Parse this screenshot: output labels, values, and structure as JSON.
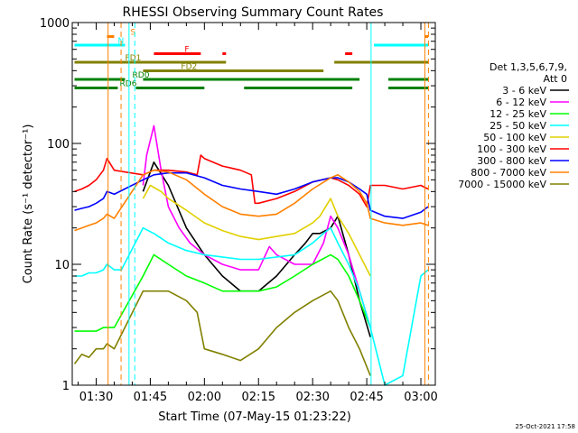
{
  "chart_data": {
    "type": "line",
    "title": "RHESSI Observing Summary Count Rates",
    "xlabel": "Start Time (07-May-15 01:23:22)",
    "ylabel": "Count Rate (s⁻¹ detector⁻¹)",
    "yscale": "log",
    "ylim": [
      1,
      1000
    ],
    "xlim_minutes": [
      83.37,
      184
    ],
    "x_ticks": [
      {
        "label": "01:30",
        "min": 90
      },
      {
        "label": "01:45",
        "min": 105
      },
      {
        "label": "02:00",
        "min": 120
      },
      {
        "label": "02:15",
        "min": 135
      },
      {
        "label": "02:30",
        "min": 150
      },
      {
        "label": "02:45",
        "min": 165
      },
      {
        "label": "03:00",
        "min": 180
      }
    ],
    "y_ticks": [
      {
        "label": "1",
        "v": 1
      },
      {
        "label": "10",
        "v": 10
      },
      {
        "label": "100",
        "v": 100
      },
      {
        "label": "1000",
        "v": 1000
      }
    ],
    "legend": {
      "placement": "right",
      "header": [
        "Det 1,3,5,6,7,9,",
        "Att 0"
      ]
    },
    "series": [
      {
        "name": "3 - 6 keV",
        "color": "#000000",
        "x": [
          103,
          106,
          110,
          115,
          120,
          125,
          130,
          135,
          140,
          145,
          148,
          150,
          152,
          155,
          157,
          160,
          163,
          166
        ],
        "y": [
          40,
          70,
          45,
          20,
          12,
          8,
          6,
          6,
          8,
          12,
          15,
          18,
          18,
          20,
          25,
          12,
          5,
          2.5
        ]
      },
      {
        "name": "6 - 12 keV",
        "color": "#ff00ff",
        "x": [
          103,
          104,
          106,
          108,
          110,
          113,
          116,
          120,
          125,
          130,
          135,
          138,
          140,
          145,
          150,
          153,
          155,
          157,
          160,
          163,
          166
        ],
        "y": [
          45,
          80,
          140,
          60,
          30,
          20,
          15,
          12,
          10,
          9,
          9,
          14,
          12,
          10,
          10,
          15,
          25,
          20,
          12,
          6,
          3
        ]
      },
      {
        "name": "12 - 25 keV",
        "color": "#00ff00",
        "x": [
          84,
          88,
          90,
          92,
          95,
          103,
          106,
          110,
          115,
          120,
          125,
          130,
          135,
          140,
          145,
          150,
          155,
          157,
          160,
          163,
          166
        ],
        "y": [
          2.8,
          2.8,
          2.8,
          3,
          3,
          8,
          12,
          10,
          8,
          7,
          6,
          6,
          6,
          6.5,
          8,
          10,
          12,
          11,
          8,
          5,
          3
        ]
      },
      {
        "name": "25 - 50 keV",
        "color": "#00ffff",
        "x": [
          84,
          86,
          88,
          90,
          92,
          93,
          95,
          97,
          103,
          106,
          110,
          115,
          120,
          125,
          130,
          135,
          140,
          145,
          150,
          153,
          155,
          157,
          160,
          163,
          166,
          170,
          175,
          180,
          182
        ],
        "y": [
          8,
          8,
          8.5,
          8.5,
          9,
          10,
          9,
          9,
          20,
          18,
          15,
          13,
          12,
          11.5,
          11,
          11,
          11.5,
          12,
          15,
          18,
          20,
          15,
          10,
          6,
          3,
          1,
          1.2,
          8,
          9
        ]
      },
      {
        "name": "50 - 100 keV",
        "color": "#e0d000",
        "x": [
          103,
          105,
          108,
          110,
          115,
          120,
          125,
          130,
          135,
          140,
          145,
          150,
          152,
          155,
          157,
          160,
          163,
          166
        ],
        "y": [
          35,
          45,
          40,
          35,
          28,
          22,
          19,
          17,
          16,
          17,
          18,
          22,
          25,
          35,
          25,
          18,
          12,
          8
        ]
      },
      {
        "name": "100 - 300 keV",
        "color": "#ff0000",
        "x": [
          84,
          86,
          88,
          90,
          92,
          93,
          95,
          103,
          106,
          110,
          115,
          118,
          119,
          120,
          125,
          130,
          133,
          134,
          135,
          140,
          145,
          150,
          155,
          157,
          160,
          163,
          165,
          166,
          170,
          175,
          180,
          182
        ],
        "y": [
          40,
          42,
          45,
          50,
          60,
          75,
          60,
          55,
          60,
          60,
          58,
          55,
          80,
          75,
          65,
          60,
          55,
          32,
          32,
          35,
          40,
          48,
          52,
          50,
          45,
          38,
          30,
          45,
          45,
          42,
          45,
          42
        ]
      },
      {
        "name": "300 - 800 keV",
        "color": "#0000ff",
        "x": [
          84,
          86,
          88,
          90,
          92,
          93,
          95,
          103,
          106,
          110,
          115,
          120,
          125,
          130,
          135,
          140,
          145,
          150,
          155,
          157,
          160,
          163,
          165,
          166,
          170,
          175,
          180,
          182
        ],
        "y": [
          28,
          29,
          30,
          32,
          35,
          40,
          38,
          50,
          55,
          57,
          57,
          52,
          45,
          42,
          40,
          38,
          42,
          48,
          52,
          52,
          48,
          42,
          38,
          28,
          25,
          24,
          27,
          30
        ]
      },
      {
        "name": "800 - 7000 keV",
        "color": "#ff8000",
        "x": [
          84,
          86,
          88,
          90,
          92,
          93,
          95,
          103,
          106,
          110,
          115,
          120,
          125,
          130,
          135,
          140,
          145,
          150,
          155,
          157,
          160,
          163,
          165,
          166,
          170,
          175,
          180,
          182
        ],
        "y": [
          19,
          20,
          21,
          22,
          24,
          26,
          24,
          55,
          60,
          58,
          50,
          38,
          30,
          26,
          25,
          26,
          32,
          42,
          52,
          55,
          48,
          40,
          32,
          24,
          22,
          21,
          22,
          21
        ]
      },
      {
        "name": "7000 - 15000 keV",
        "color": "#808000",
        "x": [
          84,
          86,
          88,
          90,
          92,
          93,
          95,
          103,
          106,
          110,
          115,
          118,
          120,
          125,
          130,
          135,
          140,
          145,
          150,
          155,
          157,
          160,
          163,
          166
        ],
        "y": [
          1.5,
          1.8,
          1.7,
          2,
          2,
          2.2,
          2,
          6,
          6,
          6,
          5,
          4,
          2,
          1.8,
          1.6,
          2,
          3,
          4,
          5,
          6,
          5,
          3,
          2,
          1.2
        ]
      }
    ],
    "flag_bars": [
      {
        "label": "S",
        "color": "#ff8000",
        "row": 1,
        "segments": [
          [
            93,
            95
          ],
          [
            181,
            182
          ]
        ]
      },
      {
        "label": "N",
        "color": "#00ffff",
        "row": 2,
        "segments": [
          [
            84,
            98
          ],
          [
            167,
            182
          ]
        ]
      },
      {
        "label": "F",
        "color": "#ff0000",
        "row": 3,
        "segments": [
          [
            106,
            119
          ],
          [
            125,
            126
          ],
          [
            159,
            161
          ]
        ]
      },
      {
        "label": "FD1",
        "color": "#808000",
        "row": 4,
        "segments": [
          [
            84,
            126
          ],
          [
            156,
            182
          ]
        ]
      },
      {
        "label": "FD2",
        "color": "#808000",
        "row": 5,
        "segments": [
          [
            103,
            153
          ]
        ]
      },
      {
        "label": "RD0",
        "color": "#008000",
        "row": 6,
        "segments": [
          [
            84,
            98
          ],
          [
            103,
            163
          ],
          [
            171,
            182
          ]
        ]
      },
      {
        "label": "RD6",
        "color": "#008000",
        "row": 7,
        "segments": [
          [
            84,
            96
          ],
          [
            101,
            120
          ],
          [
            131,
            161
          ],
          [
            171,
            182
          ]
        ]
      }
    ],
    "vertical_lines": [
      {
        "min": 93.3,
        "color": "#ff8000",
        "style": "solid"
      },
      {
        "min": 96.9,
        "color": "#ff8000",
        "style": "dashed"
      },
      {
        "min": 99.1,
        "color": "#00ffff",
        "style": "solid"
      },
      {
        "min": 100.7,
        "color": "#00ffff",
        "style": "dashed"
      },
      {
        "min": 166.2,
        "color": "#00ffff",
        "style": "solid"
      },
      {
        "min": 181.1,
        "color": "#ff8000",
        "style": "solid"
      },
      {
        "min": 182.1,
        "color": "#ff8000",
        "style": "dashed"
      }
    ],
    "footer_date": "25-Oct-2021 17:58"
  }
}
